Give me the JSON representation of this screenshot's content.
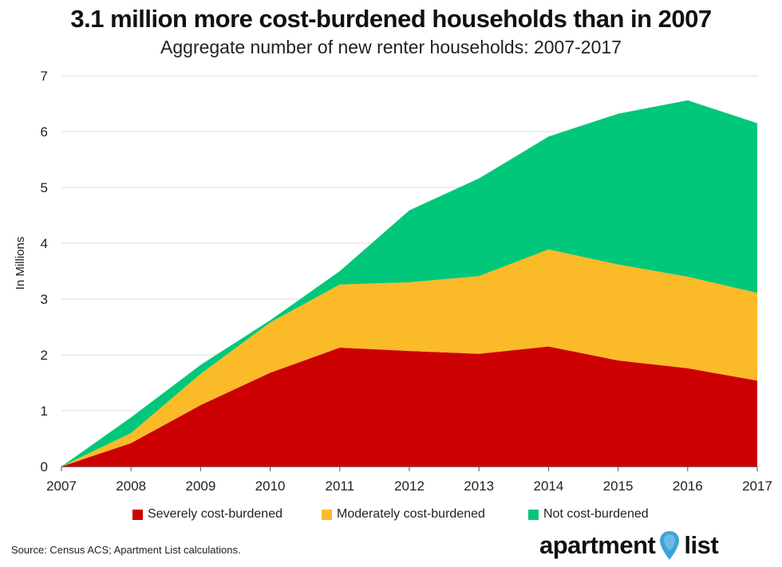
{
  "title": "3.1 million more cost-burdened households than in 2007",
  "subtitle": "Aggregate number of new renter households: 2007-2017",
  "source": "Source: Census ACS; Apartment List calculations.",
  "logo": {
    "left": "apartment",
    "right": "list"
  },
  "colors": {
    "severe": "#CC0000",
    "moderate": "#FBBA28",
    "not": "#00C77A",
    "pin": "#3DA3D6"
  },
  "chart_data": {
    "type": "area",
    "stacked": true,
    "x": [
      "2007",
      "2008",
      "2009",
      "2010",
      "2011",
      "2012",
      "2013",
      "2014",
      "2015",
      "2016",
      "2017"
    ],
    "ylabel": "In Millions",
    "ylim": [
      0,
      7
    ],
    "yticks": [
      "0",
      "1",
      "2",
      "3",
      "4",
      "5",
      "6",
      "7"
    ],
    "grid": true,
    "legend_position": "bottom",
    "series": [
      {
        "name": "Severely cost-burdened",
        "color": "#CC0000",
        "values": [
          0,
          0.42,
          1.1,
          1.68,
          2.13,
          2.07,
          2.02,
          2.15,
          1.9,
          1.76,
          1.54
        ]
      },
      {
        "name": "Moderately cost-burdened",
        "color": "#FBBA28",
        "values": [
          0,
          0.18,
          0.56,
          0.9,
          1.13,
          1.23,
          1.39,
          1.74,
          1.72,
          1.64,
          1.57
        ]
      },
      {
        "name": "Not cost-burdened",
        "color": "#00C77A",
        "values": [
          0,
          0.28,
          0.16,
          0.04,
          0.24,
          1.29,
          1.75,
          2.02,
          2.7,
          3.16,
          3.04
        ]
      }
    ]
  }
}
